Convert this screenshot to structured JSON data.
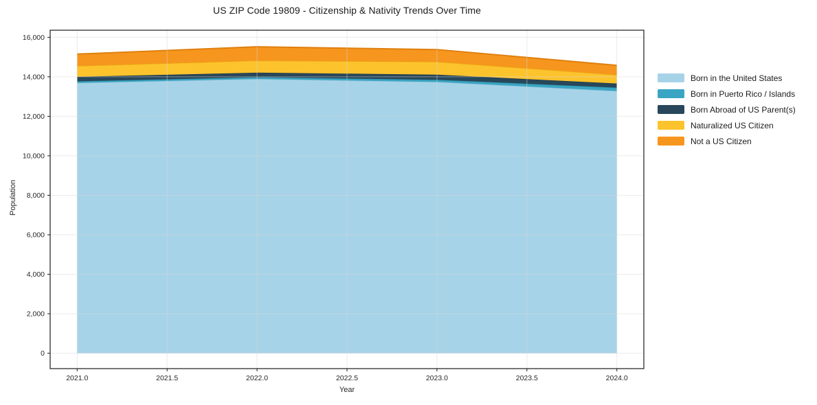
{
  "title": "US ZIP Code 19809 - Citizenship & Nativity Trends Over Time",
  "axes": {
    "xlabel": "Year",
    "ylabel": "Population"
  },
  "chart_data": {
    "type": "area",
    "stacked": true,
    "title": "US ZIP Code 19809 - Citizenship & Nativity Trends Over Time",
    "xlabel": "Year",
    "ylabel": "Population",
    "x": [
      2021,
      2022,
      2023,
      2024
    ],
    "series": [
      {
        "name": "Born in the United States",
        "color": "#a7d3e8",
        "edge_color": "#8fc3db",
        "values": [
          13690,
          13890,
          13740,
          13280
        ]
      },
      {
        "name": "Born in Puerto Rico / Islands",
        "color": "#3aa5c2",
        "edge_color": "#2d92ae",
        "values": [
          80,
          90,
          110,
          170
        ]
      },
      {
        "name": "Born Abroad of US Parent(s)",
        "color": "#28475a",
        "edge_color": "#1e3a4b",
        "values": [
          230,
          230,
          260,
          210
        ]
      },
      {
        "name": "Naturalized US Citizen",
        "color": "#fcc32d",
        "edge_color": "#eca912",
        "values": [
          550,
          610,
          650,
          440
        ]
      },
      {
        "name": "Not a US Citizen",
        "color": "#f6961e",
        "edge_color": "#df7f0e",
        "values": [
          600,
          700,
          620,
          480
        ]
      }
    ],
    "stack_totals": [
      15150,
      15520,
      15380,
      14580
    ],
    "xlim": [
      2020.85,
      2024.15
    ],
    "ylim": [
      -780,
      16360
    ],
    "xticks": {
      "values": [
        2021.0,
        2021.5,
        2022.0,
        2022.5,
        2023.0,
        2023.5,
        2024.0
      ],
      "labels": [
        "2021.0",
        "2021.5",
        "2022.0",
        "2022.5",
        "2023.0",
        "2023.5",
        "2024.0"
      ]
    },
    "yticks": {
      "values": [
        0,
        2000,
        4000,
        6000,
        8000,
        10000,
        12000,
        14000,
        16000
      ],
      "labels": [
        "0",
        "2,000",
        "4,000",
        "6,000",
        "8,000",
        "10,000",
        "12,000",
        "14,000",
        "16,000"
      ]
    },
    "grid": true,
    "grid_color": "#d8d8d8",
    "frame_color": "#1a1a1a",
    "legend_position": "right of plot"
  }
}
